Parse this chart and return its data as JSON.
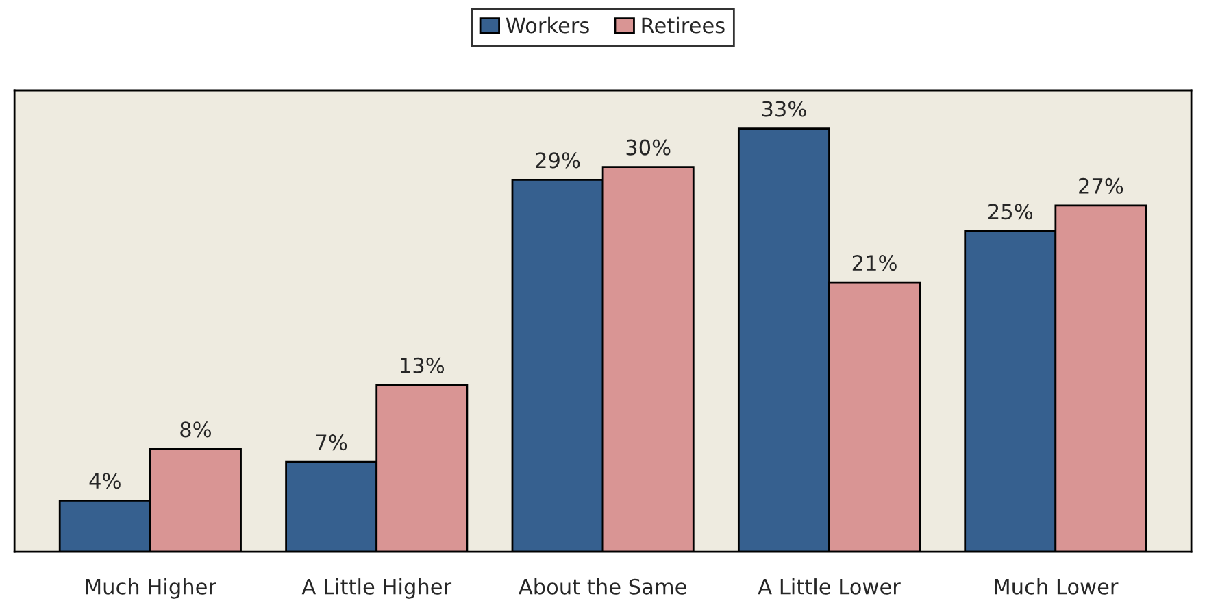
{
  "chart_data": {
    "type": "bar",
    "categories": [
      "Much Higher",
      "A Little Higher",
      "About the Same",
      "A Little Lower",
      "Much Lower"
    ],
    "series": [
      {
        "name": "Workers",
        "color": "#36608f",
        "values": [
          4,
          7,
          29,
          33,
          25
        ],
        "value_labels": [
          "4%",
          "7%",
          "29%",
          "33%",
          "25%"
        ]
      },
      {
        "name": "Retirees",
        "color": "#d99594",
        "values": [
          8,
          13,
          30,
          21,
          27
        ],
        "value_labels": [
          "8%",
          "13%",
          "30%",
          "21%",
          "27%"
        ]
      }
    ],
    "tick_labels": "x",
    "grid": false,
    "legend": "top"
  }
}
